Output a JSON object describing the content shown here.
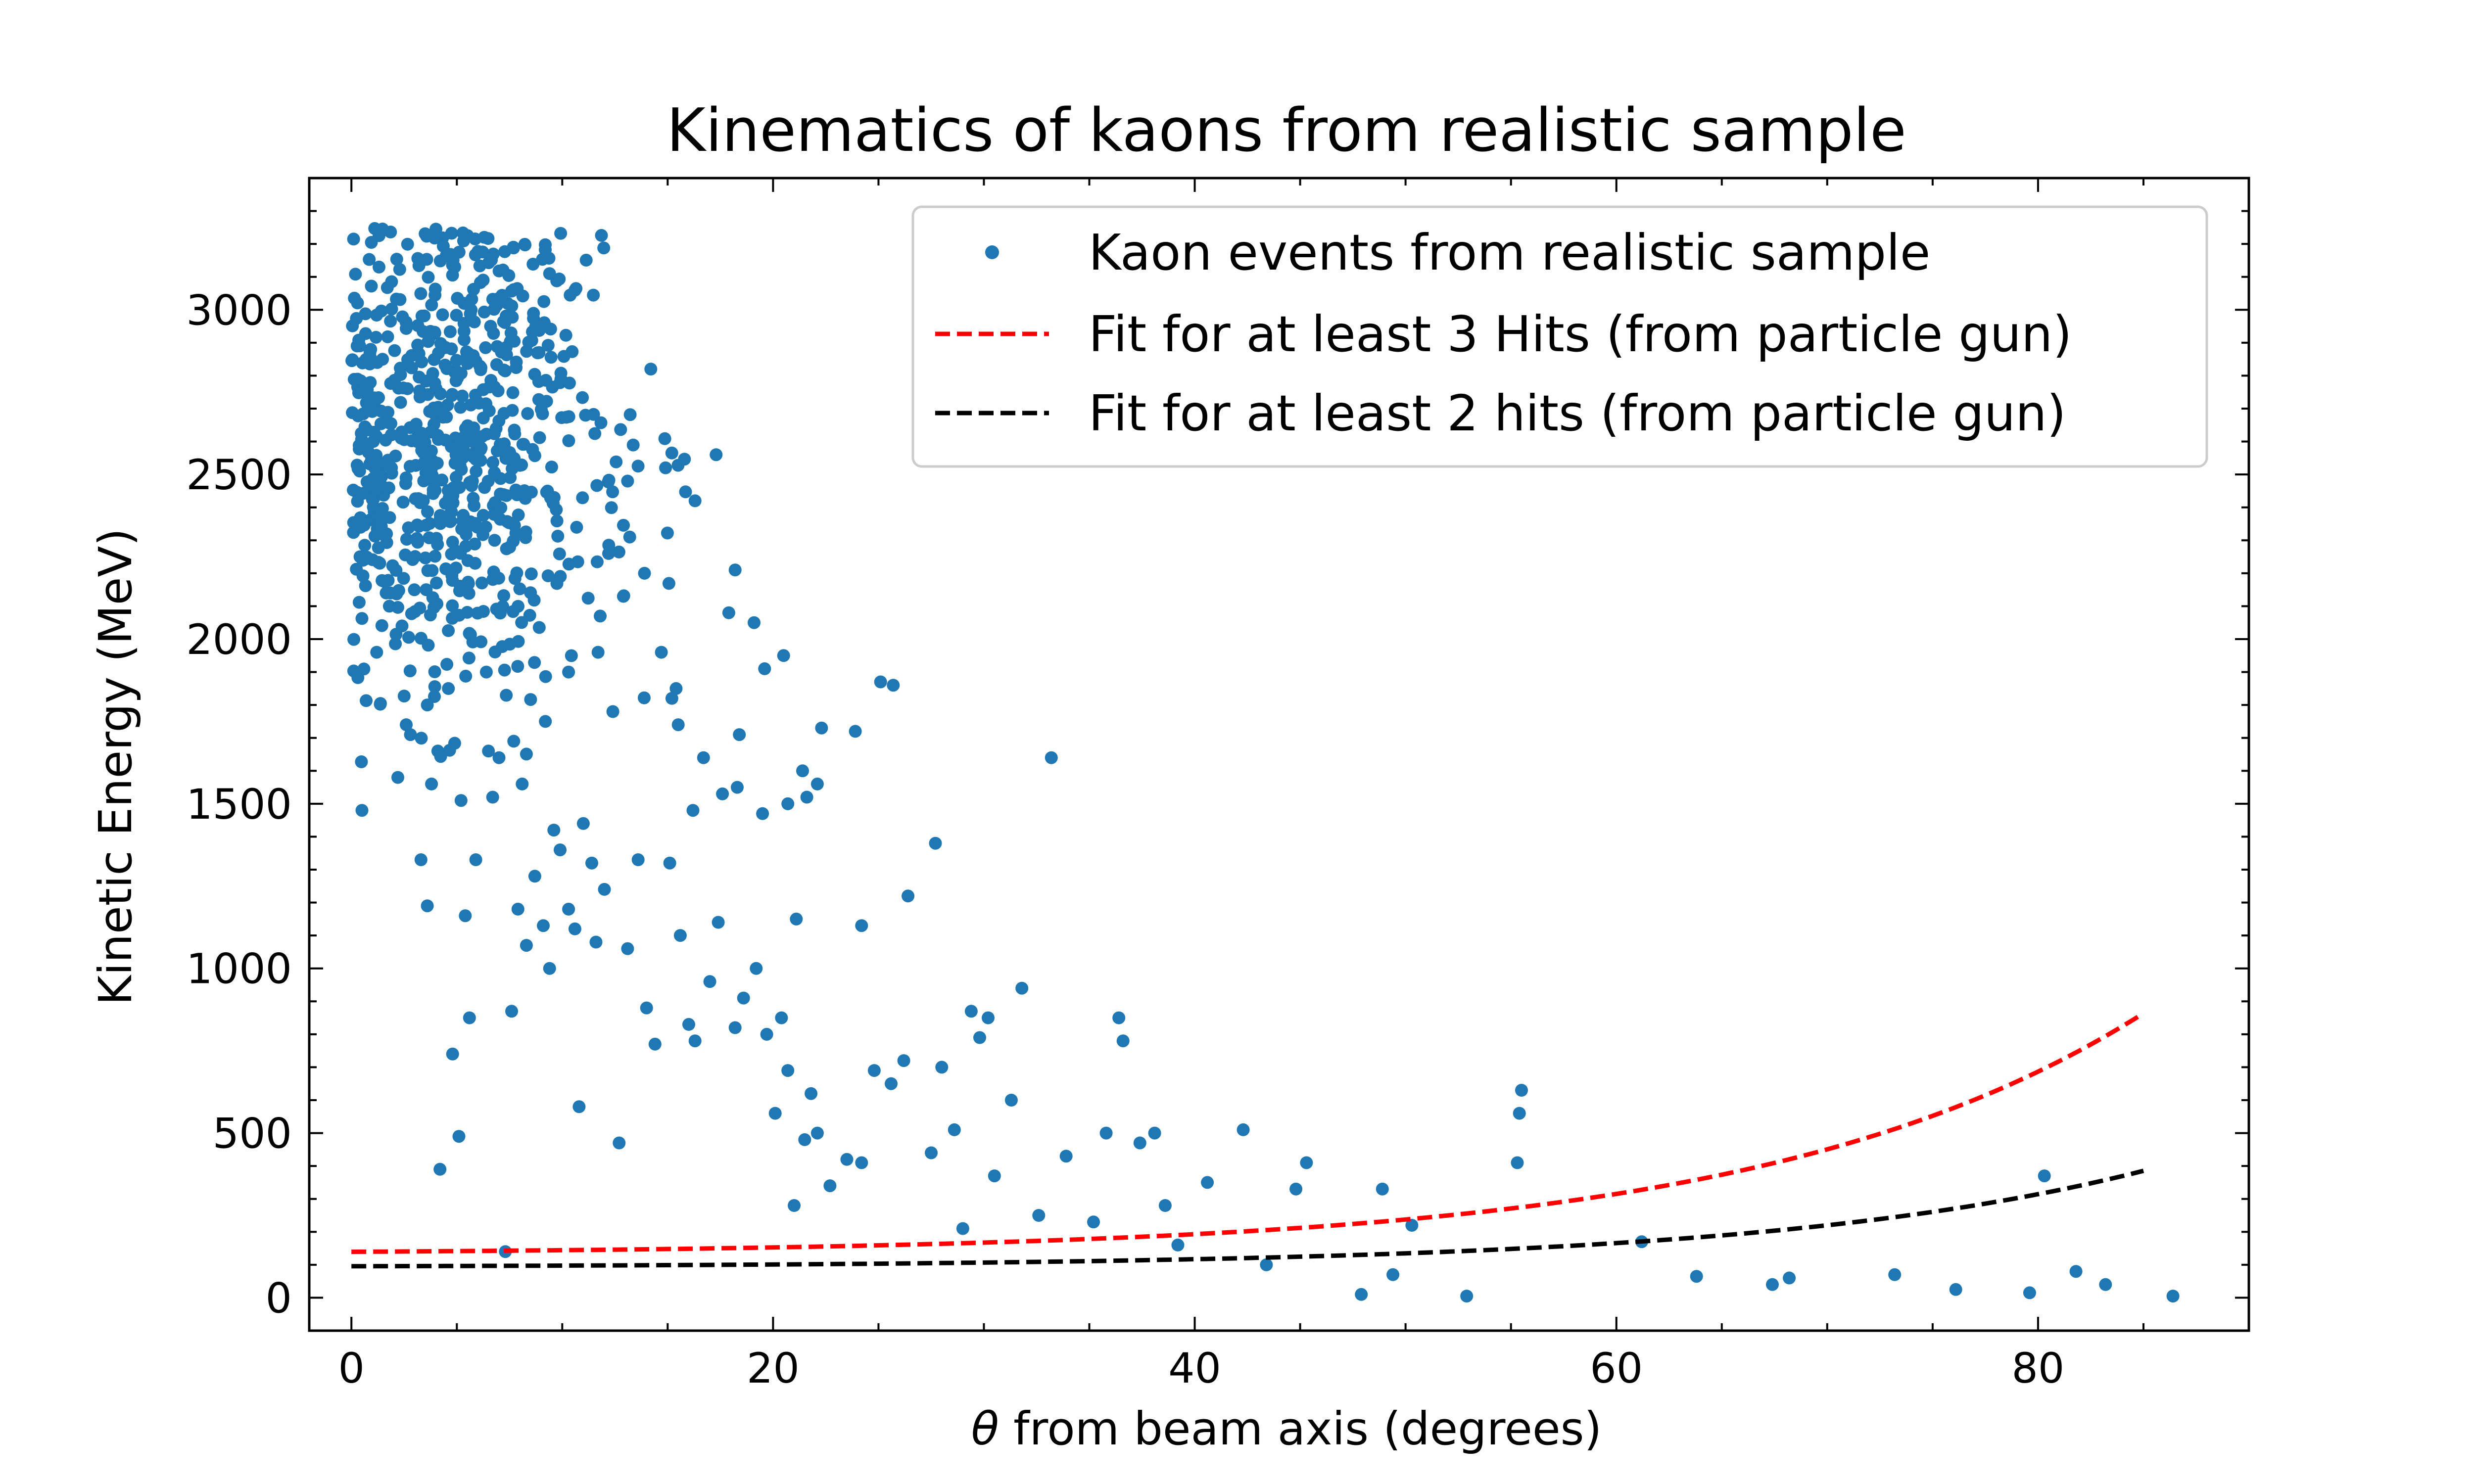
{
  "chart_data": {
    "type": "scatter",
    "title": "Kinematics of kaons from realistic sample",
    "xlabel_symbol": "θ",
    "xlabel_rest": " from beam axis (degrees)",
    "ylabel": "Kinetic Energy (MeV)",
    "xlim": [
      -2,
      90
    ],
    "ylim": [
      -100,
      3400
    ],
    "xticks": [
      0,
      20,
      40,
      60,
      80
    ],
    "yticks": [
      0,
      500,
      1000,
      1500,
      2000,
      2500,
      3000
    ],
    "grid": false,
    "legend_position": "top-right",
    "colors": {
      "points": "#1f77b4",
      "fit3": "#ff0000",
      "fit2": "#000000"
    },
    "series": [
      {
        "name": "Kaon events from realistic sample",
        "kind": "points",
        "points": [
          [
            0.5,
            1480
          ],
          [
            1.2,
            1960
          ],
          [
            1.8,
            2100
          ],
          [
            2.2,
            1580
          ],
          [
            2.6,
            1740
          ],
          [
            3.3,
            1330
          ],
          [
            3.6,
            1190
          ],
          [
            4.2,
            390
          ],
          [
            4.8,
            740
          ],
          [
            5.1,
            490
          ],
          [
            5.4,
            1160
          ],
          [
            5.6,
            850
          ],
          [
            5.9,
            1330
          ],
          [
            6.4,
            1900
          ],
          [
            6.7,
            1520
          ],
          [
            7.0,
            1640
          ],
          [
            7.3,
            140
          ],
          [
            7.6,
            870
          ],
          [
            7.9,
            1180
          ],
          [
            8.3,
            1070
          ],
          [
            8.7,
            1280
          ],
          [
            9.1,
            1130
          ],
          [
            9.4,
            1000
          ],
          [
            9.6,
            1420
          ],
          [
            9.9,
            1360
          ],
          [
            10.3,
            1180
          ],
          [
            10.6,
            1120
          ],
          [
            10.8,
            580
          ],
          [
            11.0,
            1440
          ],
          [
            11.4,
            1320
          ],
          [
            11.6,
            1080
          ],
          [
            12.0,
            1240
          ],
          [
            12.7,
            470
          ],
          [
            13.1,
            1060
          ],
          [
            13.6,
            1330
          ],
          [
            14.0,
            880
          ],
          [
            14.4,
            770
          ],
          [
            15.1,
            1320
          ],
          [
            15.6,
            1100
          ],
          [
            16.0,
            830
          ],
          [
            16.3,
            780
          ],
          [
            17.0,
            960
          ],
          [
            17.4,
            1140
          ],
          [
            18.2,
            820
          ],
          [
            18.6,
            910
          ],
          [
            19.2,
            1000
          ],
          [
            19.7,
            800
          ],
          [
            20.1,
            560
          ],
          [
            20.4,
            850
          ],
          [
            20.7,
            690
          ],
          [
            21.0,
            280
          ],
          [
            21.5,
            480
          ],
          [
            21.8,
            620
          ],
          [
            22.1,
            500
          ],
          [
            22.7,
            340
          ],
          [
            23.5,
            420
          ],
          [
            24.2,
            410
          ],
          [
            24.8,
            690
          ],
          [
            25.6,
            650
          ],
          [
            26.2,
            720
          ],
          [
            27.5,
            440
          ],
          [
            28.0,
            700
          ],
          [
            28.6,
            510
          ],
          [
            29.0,
            210
          ],
          [
            29.8,
            790
          ],
          [
            30.5,
            370
          ],
          [
            31.3,
            600
          ],
          [
            31.8,
            940
          ],
          [
            32.6,
            250
          ],
          [
            33.9,
            430
          ],
          [
            35.2,
            230
          ],
          [
            35.8,
            500
          ],
          [
            36.4,
            850
          ],
          [
            36.6,
            780
          ],
          [
            37.4,
            470
          ],
          [
            38.1,
            500
          ],
          [
            38.6,
            280
          ],
          [
            39.2,
            160
          ],
          [
            40.6,
            350
          ],
          [
            42.3,
            510
          ],
          [
            43.4,
            100
          ],
          [
            44.8,
            330
          ],
          [
            45.3,
            410
          ],
          [
            47.9,
            10
          ],
          [
            48.9,
            330
          ],
          [
            49.4,
            70
          ],
          [
            50.3,
            220
          ],
          [
            52.9,
            5
          ],
          [
            55.3,
            410
          ],
          [
            55.4,
            560
          ],
          [
            55.5,
            630
          ],
          [
            61.2,
            170
          ],
          [
            63.8,
            65
          ],
          [
            67.4,
            40
          ],
          [
            68.2,
            60
          ],
          [
            73.2,
            70
          ],
          [
            76.1,
            25
          ],
          [
            79.6,
            15
          ],
          [
            80.3,
            370
          ],
          [
            81.8,
            80
          ],
          [
            83.2,
            40
          ],
          [
            86.4,
            5
          ],
          [
            1.4,
            2320
          ],
          [
            2.4,
            2040
          ],
          [
            1.9,
            2520
          ],
          [
            12.4,
            1780
          ],
          [
            14.2,
            2820
          ],
          [
            13.1,
            2480
          ],
          [
            11.8,
            2070
          ],
          [
            15.2,
            1820
          ],
          [
            16.7,
            1640
          ],
          [
            18.4,
            1710
          ],
          [
            19.6,
            1910
          ],
          [
            20.7,
            1500
          ],
          [
            21.6,
            1520
          ],
          [
            22.3,
            1730
          ],
          [
            25.1,
            1870
          ],
          [
            25.7,
            1860
          ],
          [
            26.4,
            1220
          ],
          [
            27.7,
            1380
          ],
          [
            30.2,
            850
          ],
          [
            29.4,
            870
          ],
          [
            33.2,
            1640
          ],
          [
            24.2,
            1130
          ],
          [
            21.1,
            1150
          ],
          [
            19.5,
            1470
          ],
          [
            18.3,
            1550
          ],
          [
            21.4,
            1600
          ],
          [
            22.1,
            1560
          ],
          [
            23.9,
            1720
          ],
          [
            16.2,
            1480
          ],
          [
            15.4,
            1850
          ],
          [
            14.7,
            1960
          ],
          [
            17.6,
            1530
          ],
          [
            15.5,
            1740
          ],
          [
            14.9,
            2520
          ],
          [
            16.3,
            2420
          ],
          [
            17.3,
            2560
          ],
          [
            18.2,
            2210
          ],
          [
            17.9,
            2080
          ],
          [
            19.1,
            2050
          ],
          [
            20.5,
            1950
          ],
          [
            13.9,
            2200
          ],
          [
            13.2,
            2310
          ],
          [
            12.2,
            2260
          ],
          [
            9.4,
            3110
          ],
          [
            8.9,
            2870
          ],
          [
            7.4,
            3020
          ],
          [
            6.3,
            3220
          ],
          [
            4.9,
            3130
          ],
          [
            2.8,
            1710
          ],
          [
            3.6,
            1800
          ],
          [
            4.6,
            1850
          ],
          [
            6.5,
            1660
          ],
          [
            7.7,
            1690
          ],
          [
            8.1,
            1560
          ],
          [
            9.2,
            1750
          ],
          [
            10.3,
            1900
          ],
          [
            11.7,
            1960
          ],
          [
            12.9,
            2130
          ],
          [
            3.8,
            1560
          ],
          [
            4.1,
            1660
          ],
          [
            5.2,
            1510
          ]
        ]
      },
      {
        "name": "Fit for at least 3 Hits (from particle gun)",
        "kind": "fit",
        "style": "dashed",
        "formula": "y = 133 + 6.5*exp(x/18) for x in [0, 85]",
        "x_range": [
          0,
          85
        ],
        "params": {
          "a": 133,
          "b": 6.5,
          "c": 18
        }
      },
      {
        "name": "Fit for at least 2 hits (from particle gun)",
        "kind": "fit",
        "style": "dashed",
        "formula": "y = 93 + 2.6*exp(x/18) for x in [0, 85]",
        "x_range": [
          0,
          85
        ],
        "params": {
          "a": 93,
          "b": 2.6,
          "c": 18
        }
      }
    ],
    "dense_cluster": {
      "note": "dense cloud of kaon events at small angle and high energy",
      "x_range": [
        0,
        18
      ],
      "y_range": [
        1600,
        3250
      ],
      "count": 700,
      "center": [
        5,
        2600
      ]
    }
  }
}
